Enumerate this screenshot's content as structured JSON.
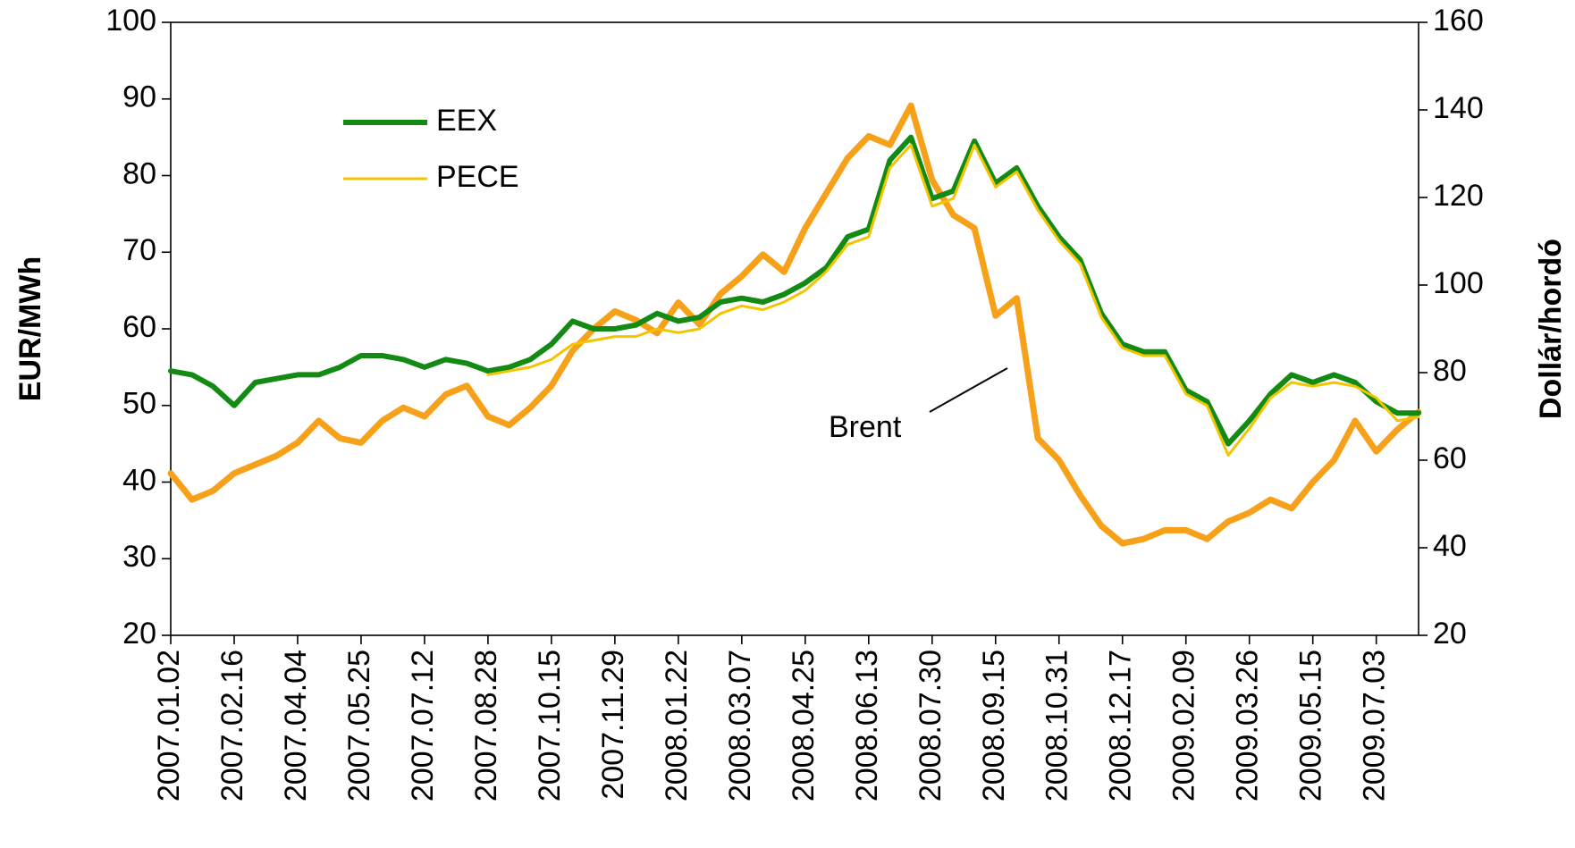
{
  "chart_data": {
    "type": "line",
    "ylabel": "EUR/MWh",
    "y2label": "Dollár/hordó",
    "ylim": [
      20,
      100
    ],
    "yticks": [
      20,
      30,
      40,
      50,
      60,
      70,
      80,
      90,
      100
    ],
    "y2lim": [
      20,
      160
    ],
    "y2ticks": [
      20,
      40,
      60,
      80,
      100,
      120,
      140,
      160
    ],
    "legend_loc": "upper left",
    "categories": [
      "2007.01.02",
      null,
      null,
      "2007.02.16",
      null,
      null,
      "2007.04.04",
      null,
      null,
      "2007.05.25",
      null,
      null,
      "2007.07.12",
      null,
      null,
      "2007.08.28",
      null,
      null,
      "2007.10.15",
      null,
      null,
      "2007.11.29",
      null,
      null,
      "2008.01.22",
      null,
      null,
      "2008.03.07",
      null,
      null,
      "2008.04.25",
      null,
      null,
      "2008.06.13",
      null,
      null,
      "2008.07.30",
      null,
      null,
      "2008.09.15",
      null,
      null,
      "2008.10.31",
      null,
      null,
      "2008.12.17",
      null,
      null,
      "2009.02.09",
      null,
      null,
      "2009.03.26",
      null,
      null,
      "2009.05.15",
      null,
      null,
      "2009.07.03",
      null,
      null
    ],
    "series": [
      {
        "name": "EEX",
        "color": "#138a13",
        "width": 6,
        "legend": true,
        "values": [
          54.5,
          54,
          52.5,
          50,
          53,
          53.5,
          54,
          54,
          55,
          56.5,
          56.5,
          56,
          55,
          56,
          55.5,
          54.5,
          55,
          56,
          58,
          61,
          60,
          60,
          60.5,
          62,
          61,
          61.5,
          63.5,
          64,
          63.5,
          64.5,
          66,
          68,
          72,
          73,
          82,
          85,
          77,
          78,
          84.5,
          79,
          81,
          76,
          72,
          69,
          62,
          58,
          57,
          57,
          52,
          50.5,
          45,
          48,
          51.5,
          54,
          53,
          54,
          53,
          50.5,
          49,
          49
        ]
      },
      {
        "name": "PECE",
        "color": "#f5c400",
        "width": 3,
        "legend": true,
        "values": [
          null,
          null,
          null,
          null,
          null,
          null,
          null,
          null,
          null,
          null,
          null,
          null,
          null,
          null,
          null,
          54,
          54.5,
          55,
          56,
          58,
          58.5,
          59,
          59,
          60,
          59.5,
          60,
          62,
          63,
          62.5,
          63.5,
          65,
          67.5,
          71,
          72,
          81,
          84,
          76,
          77,
          84,
          78.5,
          80.5,
          75.5,
          71.5,
          68.5,
          61.5,
          57.5,
          56.5,
          56.5,
          51.5,
          50,
          43.5,
          47,
          51,
          53,
          52.5,
          53,
          52.5,
          51,
          48,
          48.5
        ]
      },
      {
        "name": "Brent",
        "color": "#f7a11a",
        "width": 7,
        "legend": false,
        "axis": "y2",
        "values": [
          57,
          51,
          53,
          57,
          59,
          61,
          64,
          69,
          65,
          64,
          69,
          72,
          70,
          75,
          77,
          70,
          68,
          72,
          77,
          85,
          90,
          94,
          92,
          89,
          96,
          91,
          98,
          102,
          107,
          103,
          113,
          121,
          129,
          134,
          132,
          141,
          124,
          116,
          113,
          93,
          97,
          65,
          60,
          52,
          45,
          41,
          42,
          44,
          44,
          42,
          46,
          48,
          51,
          49,
          55,
          60,
          69,
          62,
          67,
          71
        ]
      }
    ]
  }
}
